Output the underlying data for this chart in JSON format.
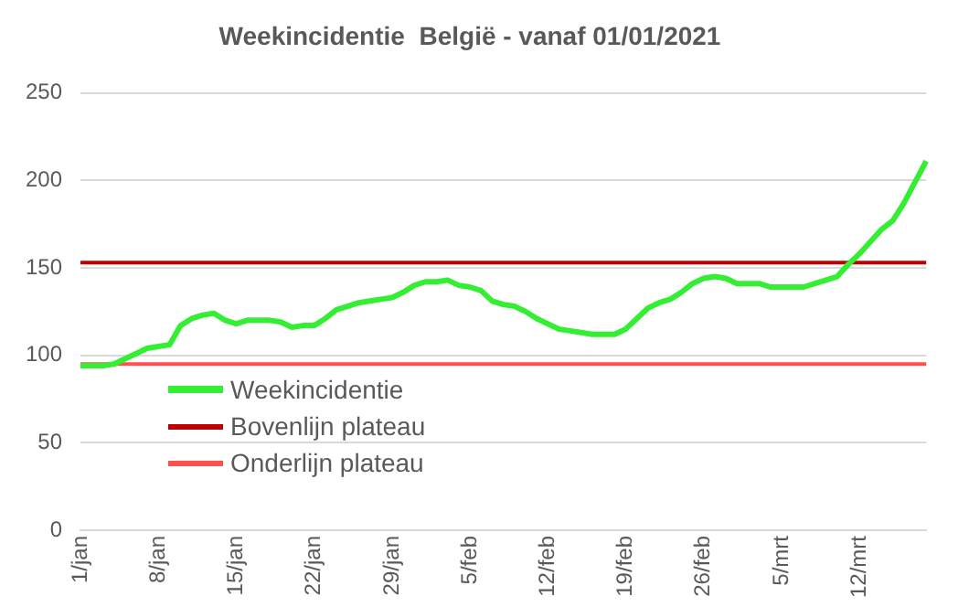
{
  "chart_data": {
    "type": "line",
    "title": "Weekincidentie  België - vanaf 01/01/2021",
    "categories": [
      "1/jan",
      null,
      null,
      null,
      null,
      null,
      null,
      "8/jan",
      null,
      null,
      null,
      null,
      null,
      null,
      "15/jan",
      null,
      null,
      null,
      null,
      null,
      null,
      "22/jan",
      null,
      null,
      null,
      null,
      null,
      null,
      "29/jan",
      null,
      null,
      null,
      null,
      null,
      null,
      "5/feb",
      null,
      null,
      null,
      null,
      null,
      null,
      "12/feb",
      null,
      null,
      null,
      null,
      null,
      null,
      "19/feb",
      null,
      null,
      null,
      null,
      null,
      null,
      "26/feb",
      null,
      null,
      null,
      null,
      null,
      null,
      "5/mrt",
      null,
      null,
      null,
      null,
      null,
      null,
      "12/mrt",
      null,
      null,
      null,
      null,
      null,
      null
    ],
    "series": [
      {
        "name": "Weekincidentie",
        "color": "#33ee33",
        "values": [
          94,
          94,
          94,
          95,
          98,
          101,
          104,
          105,
          106,
          117,
          121,
          123,
          124,
          120,
          118,
          120,
          120,
          120,
          119,
          116,
          117,
          117,
          121,
          126,
          128,
          130,
          131,
          132,
          133,
          136,
          140,
          142,
          142,
          143,
          140,
          139,
          137,
          131,
          129,
          128,
          125,
          121,
          118,
          115,
          114,
          113,
          112,
          112,
          112,
          115,
          121,
          127,
          130,
          132,
          136,
          141,
          144,
          145,
          144,
          141,
          141,
          141,
          139,
          139,
          139,
          139,
          141,
          143,
          145,
          152,
          158,
          165,
          172,
          177,
          187,
          199,
          211
        ]
      },
      {
        "name": "Bovenlijn plateau",
        "color": "#c00000",
        "values": [
          153,
          153,
          153,
          153,
          153,
          153,
          153,
          153,
          153,
          153,
          153,
          153,
          153,
          153,
          153,
          153,
          153,
          153,
          153,
          153,
          153,
          153,
          153,
          153,
          153,
          153,
          153,
          153,
          153,
          153,
          153,
          153,
          153,
          153,
          153,
          153,
          153,
          153,
          153,
          153,
          153,
          153,
          153,
          153,
          153,
          153,
          153,
          153,
          153,
          153,
          153,
          153,
          153,
          153,
          153,
          153,
          153,
          153,
          153,
          153,
          153,
          153,
          153,
          153,
          153,
          153,
          153,
          153,
          153,
          153,
          153,
          153,
          153,
          153,
          153,
          153,
          153
        ]
      },
      {
        "name": "Onderlijn plateau",
        "color": "#ff5050",
        "values": [
          95,
          95,
          95,
          95,
          95,
          95,
          95,
          95,
          95,
          95,
          95,
          95,
          95,
          95,
          95,
          95,
          95,
          95,
          95,
          95,
          95,
          95,
          95,
          95,
          95,
          95,
          95,
          95,
          95,
          95,
          95,
          95,
          95,
          95,
          95,
          95,
          95,
          95,
          95,
          95,
          95,
          95,
          95,
          95,
          95,
          95,
          95,
          95,
          95,
          95,
          95,
          95,
          95,
          95,
          95,
          95,
          95,
          95,
          95,
          95,
          95,
          95,
          95,
          95,
          95,
          95,
          95,
          95,
          95,
          95,
          95,
          95,
          95,
          95,
          95,
          95,
          95
        ]
      }
    ],
    "ylim": [
      0,
      250
    ],
    "yticks": [
      0,
      50,
      100,
      150,
      200,
      250
    ],
    "grid": "y",
    "legend": "left",
    "marker": "none"
  }
}
